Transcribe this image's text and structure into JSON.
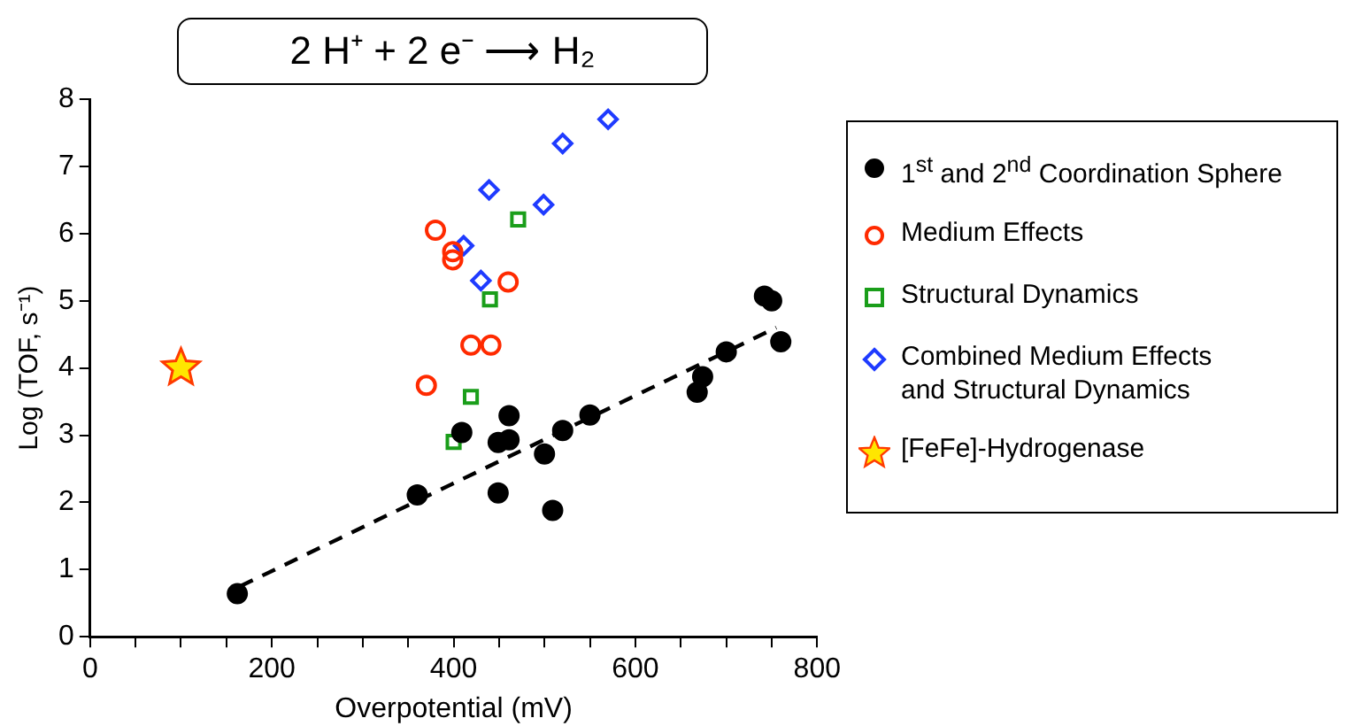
{
  "chart_data": {
    "type": "scatter",
    "title": "2 H⁺ + 2 e⁻ ⟶ H₂",
    "xlabel": "Overpotential (mV)",
    "ylabel": "Log (TOF, s⁻¹)",
    "xlim": [
      0,
      800
    ],
    "xticks": [
      0,
      {
        "value": 50,
        "label": null
      },
      {
        "value": 100,
        "label": null
      },
      {
        "value": 150,
        "label": null
      },
      200,
      {
        "value": 250,
        "label": null
      },
      {
        "value": 300,
        "label": null
      },
      {
        "value": 350,
        "label": null
      },
      400,
      {
        "value": 450,
        "label": null
      },
      {
        "value": 500,
        "label": null
      },
      {
        "value": 550,
        "label": null
      },
      600,
      {
        "value": 650,
        "label": null
      },
      {
        "value": 700,
        "label": null
      },
      {
        "value": 750,
        "label": null
      },
      800
    ],
    "ylim": [
      0,
      8
    ],
    "yticks": [
      0,
      1,
      2,
      3,
      4,
      5,
      6,
      7,
      8
    ],
    "grid": false,
    "legend": "right",
    "series": [
      {
        "name": "1$^{st}$ and 2$^{nd}$ Coordination Sphere",
        "color": "#000000",
        "marker": "circle",
        "x": [
          162,
          360,
          409,
          449,
          449,
          461,
          461,
          500,
          509,
          520,
          550,
          668,
          674,
          700,
          742,
          750,
          760
        ],
        "values": [
          0.64,
          2.11,
          3.04,
          2.89,
          2.14,
          2.93,
          3.29,
          2.72,
          1.88,
          3.07,
          3.3,
          3.64,
          3.87,
          4.24,
          5.07,
          5.0,
          4.39
        ]
      },
      {
        "name": "Medium Effects",
        "color": "#ff2a00",
        "marker": "circle",
        "x": [
          370,
          380,
          399,
          399,
          419,
          441,
          460
        ],
        "values": [
          3.74,
          6.05,
          5.73,
          5.61,
          4.34,
          4.34,
          5.28
        ]
      },
      {
        "name": "Structural Dynamics",
        "color": "#1a9e1a",
        "marker": "square",
        "x": [
          400,
          419,
          440,
          471
        ],
        "values": [
          2.9,
          3.57,
          5.02,
          6.21
        ]
      },
      {
        "name": "Combined Medium Effects\nand Structural Dynamics",
        "color": "#1f3bff",
        "marker": "diamond",
        "x": [
          411,
          430,
          439,
          499,
          520,
          570
        ],
        "values": [
          5.82,
          5.3,
          6.65,
          6.43,
          7.34,
          7.7
        ]
      },
      {
        "name": "[FeFe]-Hydrogenase",
        "color": "#ffe600",
        "marker": "star",
        "x": [
          100
        ],
        "values": [
          4.0
        ]
      },
      {
        "type": "line",
        "color": "#000000",
        "line_style": "dashed",
        "marker": "none",
        "x": [
          165,
          755
        ],
        "values": [
          0.75,
          4.6
        ]
      }
    ]
  }
}
